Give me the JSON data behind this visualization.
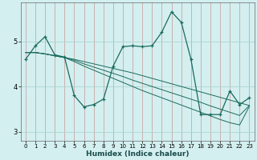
{
  "xlabel": "Humidex (Indice chaleur)",
  "bg_color": "#d4efef",
  "grid_color": "#aad4d4",
  "line_color": "#1a6b5e",
  "xmin": -0.5,
  "xmax": 23.5,
  "ymin": 2.8,
  "ymax": 5.85,
  "yticks": [
    3,
    4,
    5
  ],
  "xticks": [
    0,
    1,
    2,
    3,
    4,
    5,
    6,
    7,
    8,
    9,
    10,
    11,
    12,
    13,
    14,
    15,
    16,
    17,
    18,
    19,
    20,
    21,
    22,
    23
  ],
  "series_main": [
    4.6,
    4.9,
    5.1,
    4.7,
    4.65,
    3.8,
    3.55,
    3.6,
    3.72,
    4.45,
    4.88,
    4.9,
    4.88,
    4.9,
    5.2,
    5.65,
    5.42,
    4.6,
    3.38,
    3.38,
    3.38,
    3.9,
    3.6,
    3.75
  ],
  "series_trend1": [
    4.75,
    4.75,
    4.72,
    4.68,
    4.64,
    4.6,
    4.55,
    4.5,
    4.45,
    4.4,
    4.35,
    4.3,
    4.24,
    4.18,
    4.12,
    4.06,
    4.0,
    3.94,
    3.88,
    3.82,
    3.76,
    3.7,
    3.64,
    3.58
  ],
  "series_trend2": [
    4.75,
    4.75,
    4.72,
    4.68,
    4.64,
    4.58,
    4.5,
    4.43,
    4.36,
    4.29,
    4.22,
    4.14,
    4.07,
    4.0,
    3.93,
    3.86,
    3.79,
    3.72,
    3.65,
    3.57,
    3.5,
    3.43,
    3.36,
    3.58
  ],
  "series_trend3": [
    4.75,
    4.75,
    4.72,
    4.68,
    4.64,
    4.55,
    4.45,
    4.36,
    4.27,
    4.18,
    4.09,
    4.0,
    3.91,
    3.83,
    3.75,
    3.67,
    3.59,
    3.51,
    3.43,
    3.35,
    3.27,
    3.2,
    3.15,
    3.56
  ]
}
